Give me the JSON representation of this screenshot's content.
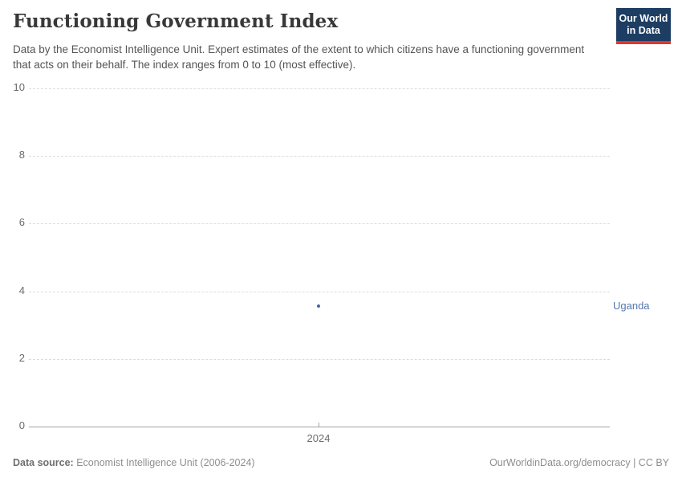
{
  "header": {
    "title": "Functioning Government Index",
    "subtitle": "Data by the Economist Intelligence Unit. Expert estimates of the extent to which citizens have a functioning government that acts on their behalf. The index ranges from 0 to 10 (most effective)."
  },
  "logo": {
    "line1": "Our World",
    "line2": "in Data",
    "bg_color": "#1d3d63",
    "bar_color": "#e0362c"
  },
  "chart_data": {
    "type": "scatter",
    "title": "Functioning Government Index",
    "xlabel": "",
    "ylabel": "",
    "ylim": [
      0,
      10
    ],
    "y_ticks": [
      0,
      2,
      4,
      6,
      8,
      10
    ],
    "x_tick_labels": [
      "2024"
    ],
    "grid": "horizontal dashed",
    "legend_position": "right-of-point",
    "series": [
      {
        "name": "Uganda",
        "color": "#4466a8",
        "label_color": "#5577b0",
        "points": [
          {
            "x": 2024,
            "y": 3.56
          }
        ]
      }
    ]
  },
  "footer": {
    "source_label": "Data source:",
    "source_text": " Economist Intelligence Unit (2006-2024)",
    "attribution": "OurWorldinData.org/democracy | CC BY"
  }
}
